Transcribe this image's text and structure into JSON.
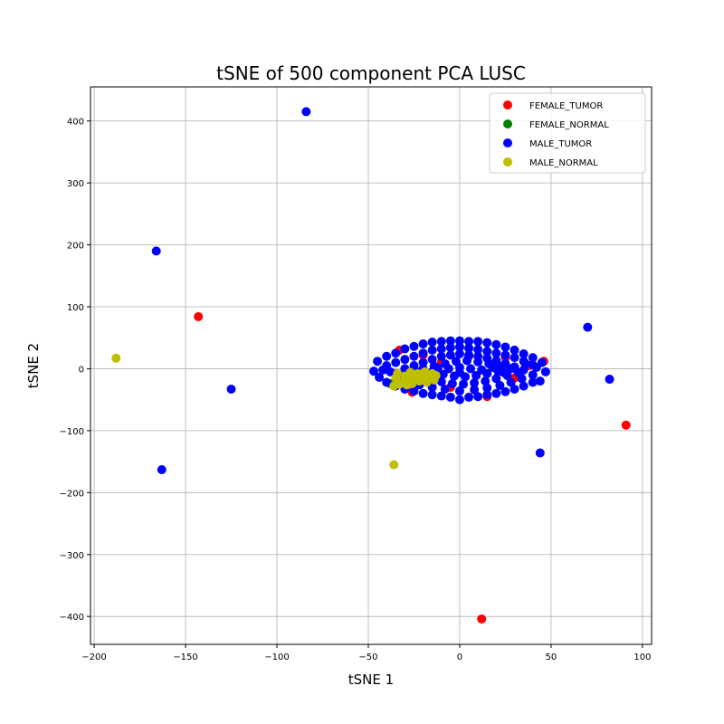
{
  "chart_data": {
    "type": "scatter",
    "title": "tSNE of 500 component PCA LUSC",
    "xlabel": "tSNE 1",
    "ylabel": "tSNE 2",
    "xlim": [
      -202,
      105
    ],
    "ylim": [
      -445,
      455
    ],
    "xticks": [
      -200,
      -150,
      -100,
      -50,
      0,
      50,
      100
    ],
    "yticks": [
      -400,
      -300,
      -200,
      -100,
      0,
      100,
      200,
      300,
      400
    ],
    "grid": true,
    "legend_position": "top-right",
    "series": [
      {
        "name": "FEMALE_TUMOR",
        "color": "#ff0000",
        "points": [
          [
            -143,
            84
          ],
          [
            91,
            -91
          ],
          [
            12,
            -404
          ],
          [
            -33,
            30
          ],
          [
            -26,
            -38
          ],
          [
            15,
            -45
          ],
          [
            46,
            12
          ],
          [
            -35,
            -8
          ],
          [
            -20,
            22
          ],
          [
            5,
            20
          ],
          [
            30,
            -15
          ],
          [
            -10,
            10
          ],
          [
            25,
            18
          ],
          [
            38,
            5
          ],
          [
            -5,
            -30
          ]
        ]
      },
      {
        "name": "FEMALE_NORMAL",
        "color": "#008000",
        "points": [
          [
            -38,
            -24
          ],
          [
            -30,
            -20
          ],
          [
            -22,
            -18
          ],
          [
            -18,
            -10
          ]
        ]
      },
      {
        "name": "MALE_TUMOR",
        "color": "#0000ff",
        "points": [
          [
            -84,
            415
          ],
          [
            -166,
            190
          ],
          [
            -125,
            -33
          ],
          [
            -163,
            -163
          ],
          [
            70,
            67
          ],
          [
            82,
            -17
          ],
          [
            44,
            -136
          ],
          [
            -47,
            -4
          ],
          [
            -45,
            12
          ],
          [
            -40,
            20
          ],
          [
            -35,
            25
          ],
          [
            -30,
            32
          ],
          [
            -25,
            36
          ],
          [
            -20,
            40
          ],
          [
            -15,
            43
          ],
          [
            -10,
            44
          ],
          [
            -5,
            45
          ],
          [
            0,
            45
          ],
          [
            5,
            44
          ],
          [
            10,
            44
          ],
          [
            15,
            42
          ],
          [
            20,
            39
          ],
          [
            25,
            35
          ],
          [
            30,
            30
          ],
          [
            35,
            24
          ],
          [
            40,
            18
          ],
          [
            45,
            10
          ],
          [
            47,
            -5
          ],
          [
            -44,
            -14
          ],
          [
            -40,
            -22
          ],
          [
            -35,
            -28
          ],
          [
            -30,
            -33
          ],
          [
            -25,
            -36
          ],
          [
            -20,
            -40
          ],
          [
            -15,
            -42
          ],
          [
            -10,
            -44
          ],
          [
            -5,
            -46
          ],
          [
            0,
            -50
          ],
          [
            5,
            -46
          ],
          [
            10,
            -45
          ],
          [
            15,
            -42
          ],
          [
            20,
            -40
          ],
          [
            25,
            -37
          ],
          [
            30,
            -33
          ],
          [
            35,
            -28
          ],
          [
            40,
            -22
          ],
          [
            44,
            -20
          ],
          [
            -40,
            5
          ],
          [
            -35,
            10
          ],
          [
            -30,
            15
          ],
          [
            -25,
            20
          ],
          [
            -20,
            25
          ],
          [
            -15,
            30
          ],
          [
            -10,
            32
          ],
          [
            -5,
            34
          ],
          [
            0,
            35
          ],
          [
            5,
            33
          ],
          [
            10,
            31
          ],
          [
            15,
            28
          ],
          [
            20,
            25
          ],
          [
            25,
            22
          ],
          [
            30,
            18
          ],
          [
            35,
            12
          ],
          [
            40,
            6
          ],
          [
            -38,
            -5
          ],
          [
            -33,
            -12
          ],
          [
            -28,
            -20
          ],
          [
            -22,
            -26
          ],
          [
            -15,
            -30
          ],
          [
            -8,
            -33
          ],
          [
            0,
            -36
          ],
          [
            8,
            -34
          ],
          [
            15,
            -31
          ],
          [
            22,
            -27
          ],
          [
            28,
            -22
          ],
          [
            34,
            -16
          ],
          [
            40,
            -10
          ],
          [
            -30,
            0
          ],
          [
            -25,
            5
          ],
          [
            -20,
            10
          ],
          [
            -15,
            15
          ],
          [
            -10,
            20
          ],
          [
            -5,
            22
          ],
          [
            0,
            24
          ],
          [
            5,
            22
          ],
          [
            10,
            20
          ],
          [
            15,
            17
          ],
          [
            20,
            13
          ],
          [
            25,
            8
          ],
          [
            30,
            3
          ],
          [
            35,
            -2
          ],
          [
            -28,
            -8
          ],
          [
            -22,
            -14
          ],
          [
            -16,
            -18
          ],
          [
            -10,
            -21
          ],
          [
            -4,
            -24
          ],
          [
            2,
            -25
          ],
          [
            8,
            -23
          ],
          [
            14,
            -20
          ],
          [
            20,
            -16
          ],
          [
            26,
            -11
          ],
          [
            32,
            -6
          ],
          [
            -20,
            0
          ],
          [
            -14,
            4
          ],
          [
            -8,
            8
          ],
          [
            -2,
            12
          ],
          [
            4,
            13
          ],
          [
            10,
            11
          ],
          [
            16,
            8
          ],
          [
            22,
            4
          ],
          [
            28,
            0
          ],
          [
            -15,
            -5
          ],
          [
            -9,
            -9
          ],
          [
            -3,
            -12
          ],
          [
            3,
            -13
          ],
          [
            9,
            -11
          ],
          [
            15,
            -8
          ],
          [
            21,
            -4
          ],
          [
            -6,
            0
          ],
          [
            0,
            2
          ],
          [
            6,
            0
          ],
          [
            12,
            -2
          ],
          [
            0,
            -6
          ],
          [
            -12,
            1
          ],
          [
            18,
            2
          ],
          [
            24,
            -6
          ],
          [
            -24,
            -4
          ],
          [
            36,
            8
          ],
          [
            -32,
            -16
          ],
          [
            42,
            2
          ],
          [
            -42,
            -2
          ]
        ]
      },
      {
        "name": "MALE_NORMAL",
        "color": "#bfbf00",
        "points": [
          [
            -188,
            17
          ],
          [
            -36,
            -155
          ],
          [
            -36,
            -28
          ],
          [
            -35,
            -15
          ],
          [
            -34,
            -8
          ],
          [
            -32,
            -22
          ],
          [
            -30,
            -12
          ],
          [
            -28,
            -18
          ],
          [
            -27,
            -6
          ],
          [
            -26,
            -24
          ],
          [
            -24,
            -14
          ],
          [
            -23,
            -8
          ],
          [
            -22,
            -20
          ],
          [
            -20,
            -12
          ],
          [
            -19,
            -5
          ],
          [
            -18,
            -22
          ],
          [
            -16,
            -15
          ],
          [
            -15,
            -8
          ],
          [
            -14,
            -18
          ],
          [
            -13,
            -11
          ],
          [
            -33,
            -25
          ],
          [
            -29,
            -26
          ],
          [
            -25,
            -10
          ],
          [
            -21,
            -16
          ]
        ]
      }
    ]
  }
}
